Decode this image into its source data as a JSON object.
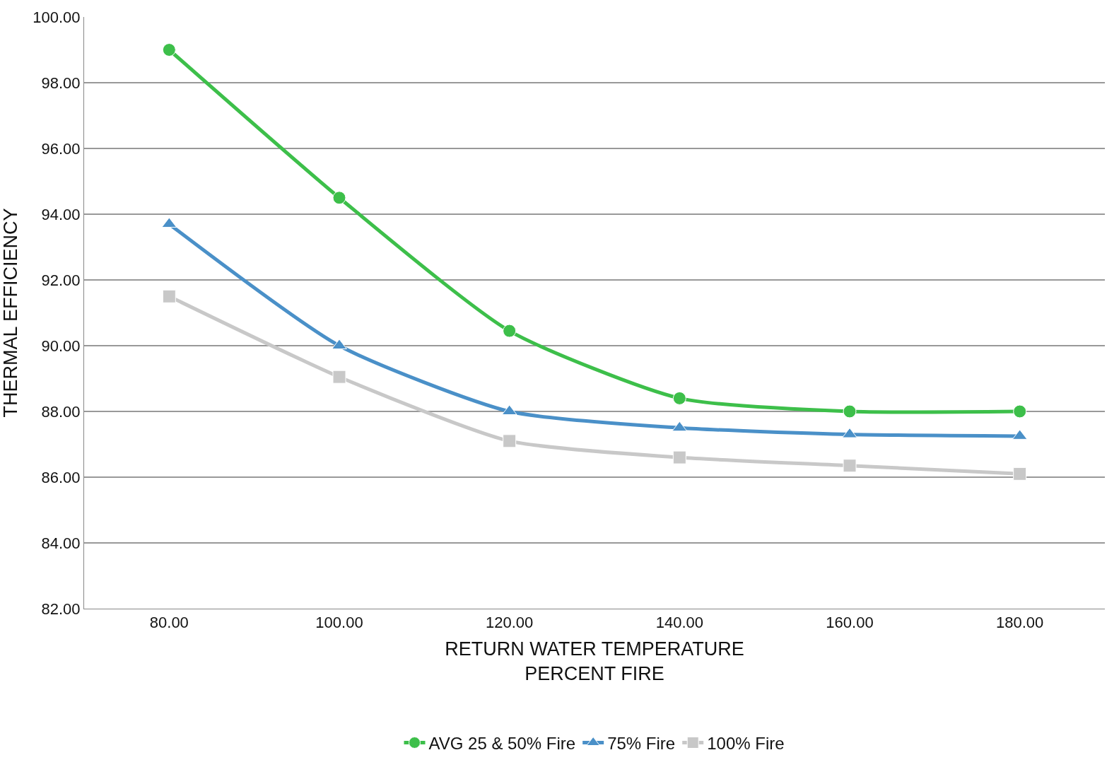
{
  "chart_data": {
    "type": "line",
    "xlabel": "RETURN WATER TEMPERATURE\nPERCENT FIRE",
    "ylabel": "THERMAL EFFICIENCY",
    "categories": [
      "80.00",
      "100.00",
      "120.00",
      "140.00",
      "160.00",
      "180.00"
    ],
    "series": [
      {
        "name": "AVG 25 & 50% Fire",
        "color": "#3dbf4a",
        "marker": "circle",
        "values": [
          99.0,
          94.5,
          90.45,
          88.4,
          88.0,
          88.0
        ]
      },
      {
        "name": "75% Fire",
        "color": "#4a90c8",
        "marker": "triangle",
        "values": [
          93.7,
          90.0,
          88.0,
          87.5,
          87.3,
          87.25
        ]
      },
      {
        "name": "100% Fire",
        "color": "#c8c8c8",
        "marker": "square",
        "values": [
          91.5,
          89.05,
          87.1,
          86.6,
          86.35,
          86.1
        ]
      }
    ],
    "ylim": [
      82,
      100
    ],
    "yticks": [
      {
        "value": 82,
        "label": "82.00"
      },
      {
        "value": 84,
        "label": "84.00"
      },
      {
        "value": 86,
        "label": "86.00"
      },
      {
        "value": 88,
        "label": "88.00"
      },
      {
        "value": 90,
        "label": "90.00"
      },
      {
        "value": 92,
        "label": "92.00"
      },
      {
        "value": 94,
        "label": "94.00"
      },
      {
        "value": 96,
        "label": "96.00"
      },
      {
        "value": 98,
        "label": "98.00"
      },
      {
        "value": 100,
        "label": "100.00"
      }
    ],
    "grid": "y",
    "legend": "bottom",
    "line_style": "solid"
  }
}
